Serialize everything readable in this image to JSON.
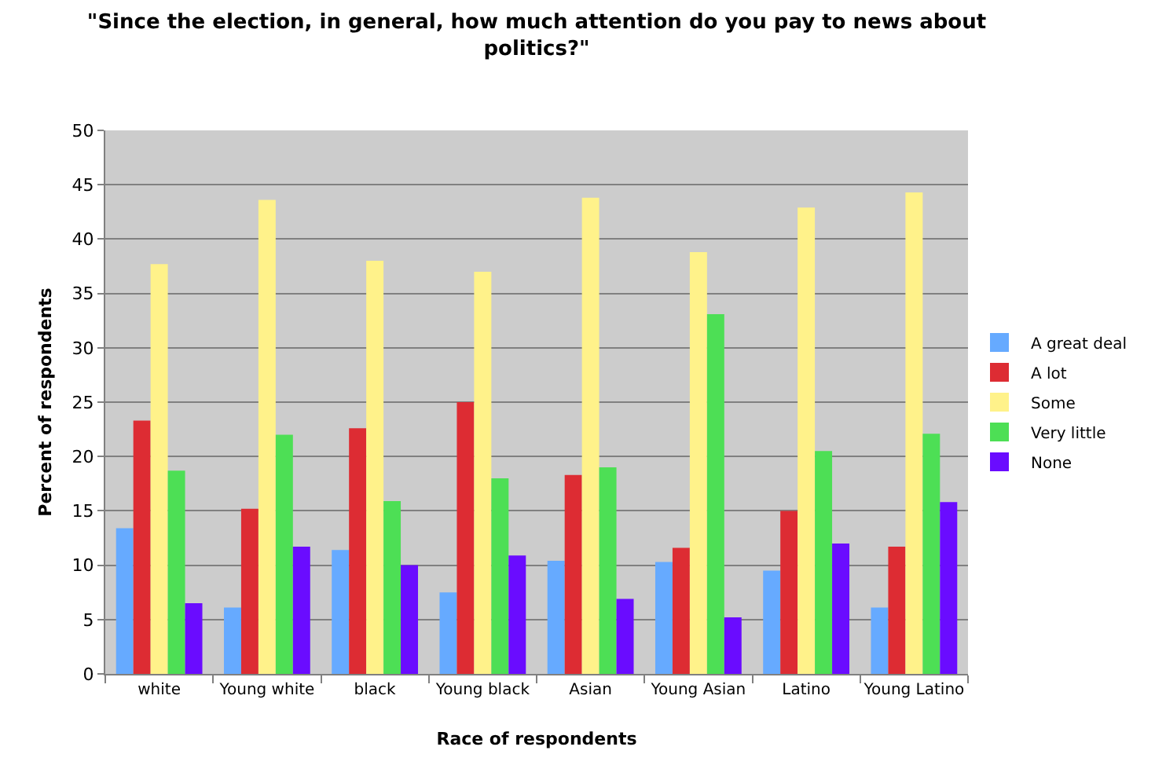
{
  "chart_data": {
    "type": "bar",
    "title": "\"Since the election, in general, how much attention do you pay to news about politics?\"",
    "xlabel": "Race of respondents",
    "ylabel": "Percent of respondents",
    "categories": [
      "white",
      "Young white",
      "black",
      "Young black",
      "Asian",
      "Young Asian",
      "Latino",
      "Young Latino"
    ],
    "series": [
      {
        "name": "A great deal",
        "color": "#66aaff",
        "values": [
          13.4,
          6.1,
          11.4,
          7.5,
          10.4,
          10.3,
          9.5,
          6.1
        ]
      },
      {
        "name": "A lot",
        "color": "#dd2c33",
        "values": [
          23.3,
          15.2,
          22.6,
          25.0,
          18.3,
          11.6,
          15.0,
          11.7
        ]
      },
      {
        "name": "Some",
        "color": "#fff28a",
        "values": [
          37.7,
          43.6,
          38.0,
          37.0,
          43.8,
          38.8,
          42.9,
          44.3
        ]
      },
      {
        "name": "Very little",
        "color": "#4ddf55",
        "values": [
          18.7,
          22.0,
          15.9,
          18.0,
          19.0,
          33.1,
          20.5,
          22.1
        ]
      },
      {
        "name": "None",
        "color": "#6a0cff",
        "values": [
          6.5,
          11.7,
          10.0,
          10.9,
          6.9,
          5.2,
          12.0,
          15.8
        ]
      }
    ],
    "ylim": [
      0,
      50
    ],
    "yticks": [
      0,
      5,
      10,
      15,
      20,
      25,
      30,
      35,
      40,
      45,
      50
    ],
    "grid": "y",
    "legend": "right"
  }
}
